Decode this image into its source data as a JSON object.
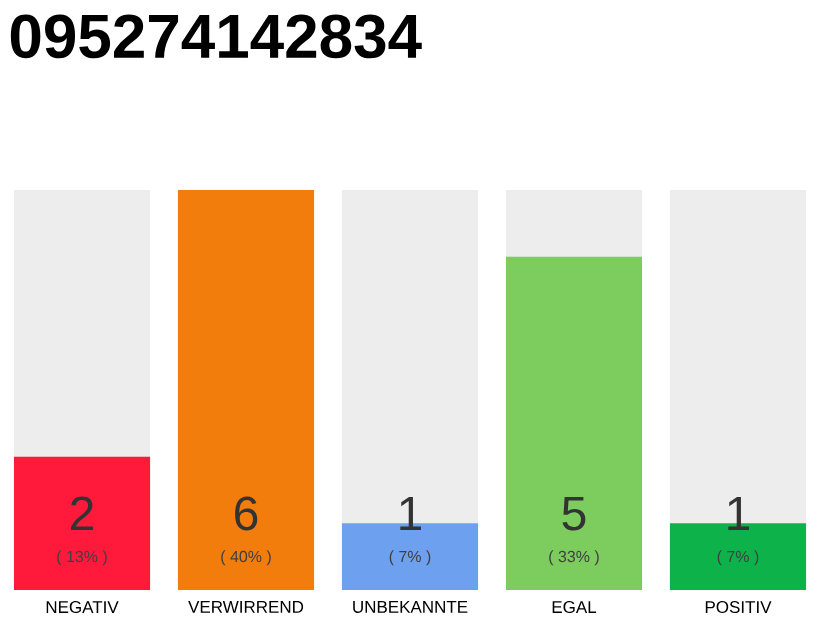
{
  "chart_data": {
    "type": "bar",
    "title": "095274142834",
    "categories": [
      "NEGATIV",
      "VERWIRREND",
      "UNBEKANNTE",
      "EGAL",
      "POSITIV"
    ],
    "values": [
      2,
      6,
      1,
      5,
      1
    ],
    "colors": [
      "#ff1a3c",
      "#f27d0c",
      "#6ea0f0",
      "#7dcc5e",
      "#0db34a"
    ],
    "data_labels": true,
    "annotations": [
      "( 13% )",
      "( 40% )",
      "( 7% )",
      "( 33% )",
      "( 7% )"
    ]
  }
}
